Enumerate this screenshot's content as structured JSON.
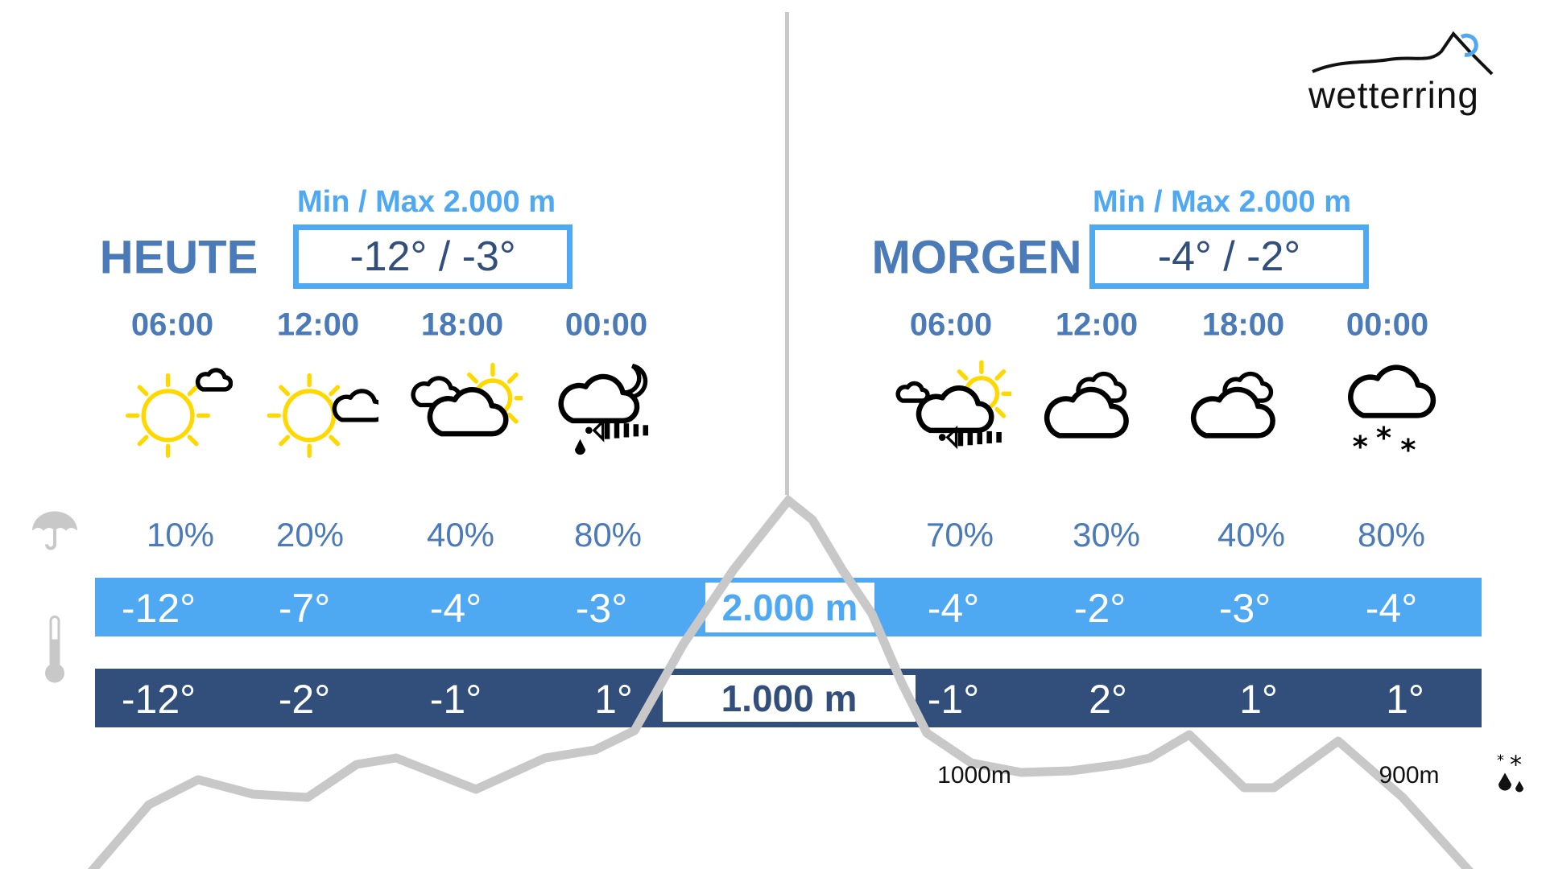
{
  "logo": {
    "text": "wetterring"
  },
  "colors": {
    "accent": "#4fa8f2",
    "dark": "#324e7b",
    "text": "#4a7ab8",
    "terrain": "#c8c8c8",
    "sun": "#ffd800"
  },
  "today": {
    "label": "HEUTE",
    "minmax_label": "Min / Max 2.000 m",
    "minmax": "-12° / -3°",
    "slots": [
      {
        "time": "06:00",
        "icon": "sun-small-cloud-icon",
        "precip": "10%",
        "t2000": "-12°",
        "t1000": "-12°"
      },
      {
        "time": "12:00",
        "icon": "sun-cloud-icon",
        "precip": "20%",
        "t2000": "-7°",
        "t1000": "-2°"
      },
      {
        "time": "18:00",
        "icon": "cloud-sun-icon",
        "precip": "40%",
        "t2000": "-4°",
        "t1000": "-1°"
      },
      {
        "time": "00:00",
        "icon": "night-rain-wind-icon",
        "precip": "80%",
        "t2000": "-3°",
        "t1000": "1°"
      }
    ]
  },
  "tomorrow": {
    "label": "MORGEN",
    "minmax_label": "Min / Max 2.000 m",
    "minmax": "-4° / -2°",
    "slots": [
      {
        "time": "06:00",
        "icon": "cloud-sun-wind-icon",
        "precip": "70%",
        "t2000": "-4°",
        "t1000": "-1°"
      },
      {
        "time": "12:00",
        "icon": "cloud-icon",
        "precip": "30%",
        "t2000": "-2°",
        "t1000": "2°"
      },
      {
        "time": "18:00",
        "icon": "cloud-icon",
        "precip": "40%",
        "t2000": "-3°",
        "t1000": "1°"
      },
      {
        "time": "00:00",
        "icon": "cloud-snow-icon",
        "precip": "80%",
        "t2000": "-4°",
        "t1000": "1°"
      }
    ]
  },
  "altitudes": {
    "upper": "2.000 m",
    "lower": "1.000 m"
  },
  "snowline": {
    "today": "1000m",
    "tomorrow": "900m",
    "icon": "snow-rain-icon"
  },
  "side_icons": {
    "precip": "umbrella-icon",
    "temp": "thermometer-icon"
  }
}
